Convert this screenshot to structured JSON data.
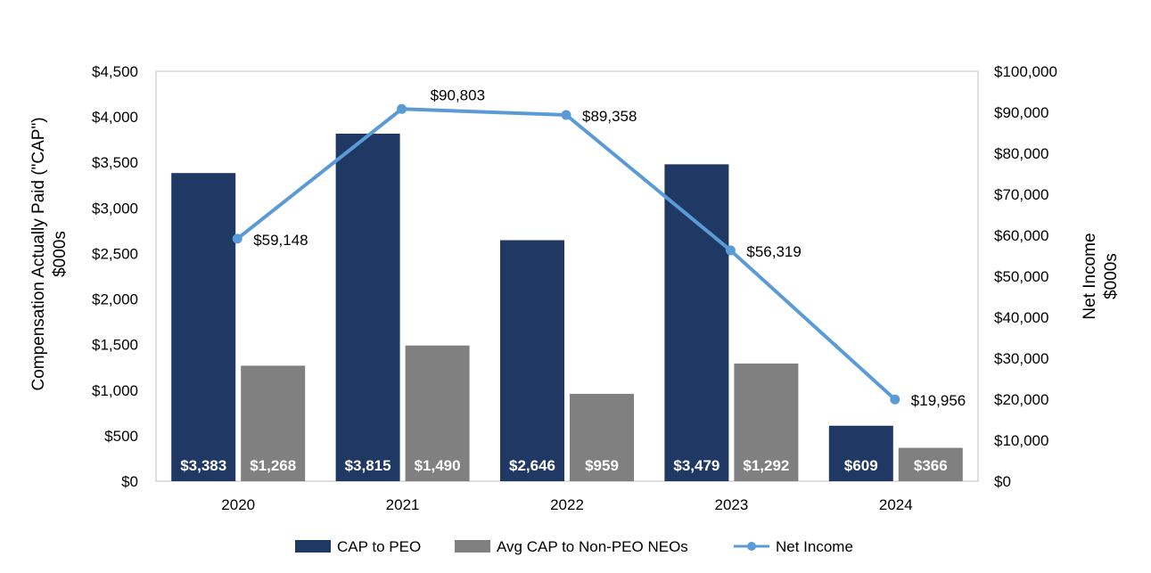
{
  "chart_data": {
    "type": "bar",
    "categories": [
      "2020",
      "2021",
      "2022",
      "2023",
      "2024"
    ],
    "series": [
      {
        "name": "CAP to PEO",
        "type": "bar",
        "axis": "left",
        "color": "#1f3864",
        "values": [
          3383,
          3815,
          2646,
          3479,
          609
        ],
        "labels": [
          "$3,383",
          "$3,815",
          "$2,646",
          "$3,479",
          "$609"
        ]
      },
      {
        "name": "Avg CAP to Non-PEO NEOs",
        "type": "bar",
        "axis": "left",
        "color": "#808080",
        "values": [
          1268,
          1490,
          959,
          1292,
          366
        ],
        "labels": [
          "$1,268",
          "$1,490",
          "$959",
          "$1,292",
          "$366"
        ]
      },
      {
        "name": "Net Income",
        "type": "line",
        "axis": "right",
        "color": "#5b9bd5",
        "values": [
          59148,
          90803,
          89358,
          56319,
          19956
        ],
        "labels": [
          "$59,148",
          "$90,803",
          "$89,358",
          "$56,319",
          "$19,956"
        ]
      }
    ],
    "y_left": {
      "label_line1": "Compensation Actually Paid (\"CAP\")",
      "label_line2": "$000s",
      "range": [
        0,
        4500
      ],
      "ticks": [
        0,
        500,
        1000,
        1500,
        2000,
        2500,
        3000,
        3500,
        4000,
        4500
      ],
      "tick_labels": [
        "$0",
        "$500",
        "$1,000",
        "$1,500",
        "$2,000",
        "$2,500",
        "$3,000",
        "$3,500",
        "$4,000",
        "$4,500"
      ]
    },
    "y_right": {
      "label_line1": "Net Income",
      "label_line2": "$000s",
      "range": [
        0,
        100000
      ],
      "ticks": [
        0,
        10000,
        20000,
        30000,
        40000,
        50000,
        60000,
        70000,
        80000,
        90000,
        100000
      ],
      "tick_labels": [
        "$0",
        "$10,000",
        "$20,000",
        "$30,000",
        "$40,000",
        "$50,000",
        "$60,000",
        "$70,000",
        "$80,000",
        "$90,000",
        "$100,000"
      ]
    },
    "grid": false,
    "legend_position": "bottom"
  }
}
